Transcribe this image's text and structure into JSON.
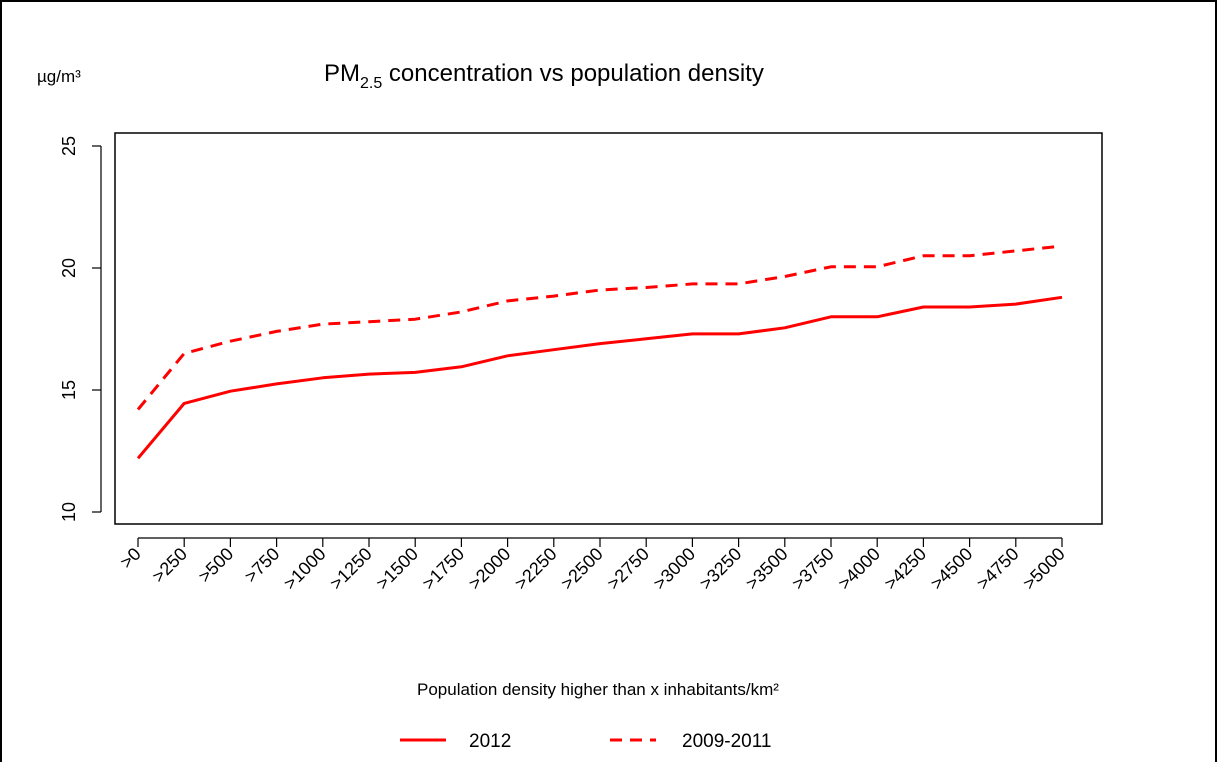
{
  "chart_data": {
    "type": "line",
    "title": {
      "prefix": "PM",
      "subscript": "2.5",
      "suffix": " concentration vs population density"
    },
    "unit_label": "µg/m³",
    "xlabel": "Population density higher than x inhabitants/km²",
    "ylabel": "",
    "categories": [
      ">0",
      ">250",
      ">500",
      ">750",
      ">1000",
      ">1250",
      ">1500",
      ">1750",
      ">2000",
      ">2250",
      ">2500",
      ">2750",
      ">3000",
      ">3250",
      ">3500",
      ">3750",
      ">4000",
      ">4250",
      ">4500",
      ">4750",
      ">5000"
    ],
    "ylim": [
      10,
      25
    ],
    "yticks": [
      10,
      15,
      20,
      25
    ],
    "grid": false,
    "legend_position": "bottom",
    "series": [
      {
        "name": "2012",
        "line_style": "solid",
        "color": "#ff0000",
        "values": [
          12.2,
          14.45,
          14.95,
          15.25,
          15.5,
          15.65,
          15.72,
          15.95,
          16.4,
          16.65,
          16.9,
          17.1,
          17.3,
          17.3,
          17.55,
          18.0,
          18.0,
          18.4,
          18.4,
          18.52,
          18.8
        ]
      },
      {
        "name": "2009-2011",
        "line_style": "dashed",
        "color": "#ff0000",
        "values": [
          14.2,
          16.5,
          17.0,
          17.4,
          17.7,
          17.8,
          17.9,
          18.2,
          18.65,
          18.85,
          19.1,
          19.2,
          19.35,
          19.35,
          19.65,
          20.05,
          20.05,
          20.5,
          20.5,
          20.7,
          20.9
        ]
      }
    ]
  }
}
